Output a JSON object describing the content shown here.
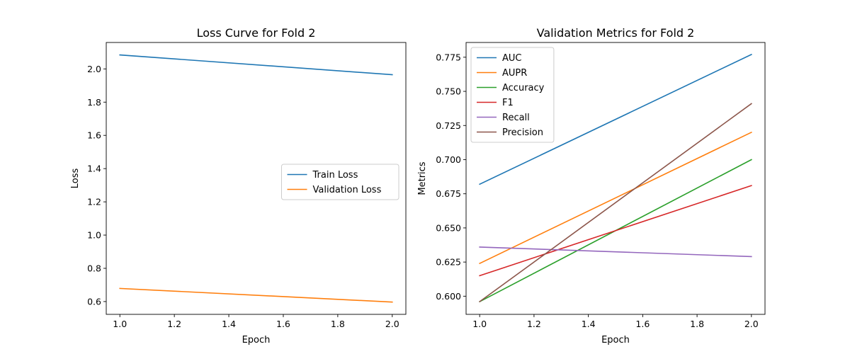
{
  "chart_data": [
    {
      "type": "line",
      "title": "Loss Curve for Fold 2",
      "xlabel": "Epoch",
      "ylabel": "Loss",
      "x": [
        1.0,
        2.0
      ],
      "xlim": [
        0.95,
        2.05
      ],
      "ylim": [
        0.523,
        2.159
      ],
      "xticks": [
        1.0,
        1.2,
        1.4,
        1.6,
        1.8,
        2.0
      ],
      "xtick_labels": [
        "1.0",
        "1.2",
        "1.4",
        "1.6",
        "1.8",
        "2.0"
      ],
      "yticks": [
        0.6,
        0.8,
        1.0,
        1.2,
        1.4,
        1.6,
        1.8,
        2.0
      ],
      "ytick_labels": [
        "0.6",
        "0.8",
        "1.0",
        "1.2",
        "1.4",
        "1.6",
        "1.8",
        "2.0"
      ],
      "grid": false,
      "legend": "center-right",
      "series": [
        {
          "name": "Train Loss",
          "values": [
            2.084,
            1.965
          ],
          "color": "#1f77b4"
        },
        {
          "name": "Validation Loss",
          "values": [
            0.679,
            0.597
          ],
          "color": "#ff7f0e"
        }
      ]
    },
    {
      "type": "line",
      "title": "Validation Metrics for Fold 2",
      "xlabel": "Epoch",
      "ylabel": "Metrics",
      "x": [
        1.0,
        2.0
      ],
      "xlim": [
        0.95,
        2.05
      ],
      "ylim": [
        0.5867,
        0.7858
      ],
      "xticks": [
        1.0,
        1.2,
        1.4,
        1.6,
        1.8,
        2.0
      ],
      "xtick_labels": [
        "1.0",
        "1.2",
        "1.4",
        "1.6",
        "1.8",
        "2.0"
      ],
      "yticks": [
        0.6,
        0.625,
        0.65,
        0.675,
        0.7,
        0.725,
        0.75,
        0.775
      ],
      "ytick_labels": [
        "0.600",
        "0.625",
        "0.650",
        "0.675",
        "0.700",
        "0.725",
        "0.750",
        "0.775"
      ],
      "grid": false,
      "legend": "upper-left",
      "series": [
        {
          "name": "AUC",
          "values": [
            0.682,
            0.777
          ],
          "color": "#1f77b4"
        },
        {
          "name": "AUPR",
          "values": [
            0.624,
            0.72
          ],
          "color": "#ff7f0e"
        },
        {
          "name": "Accuracy",
          "values": [
            0.596,
            0.7
          ],
          "color": "#2ca02c"
        },
        {
          "name": "F1",
          "values": [
            0.615,
            0.681
          ],
          "color": "#d62728"
        },
        {
          "name": "Recall",
          "values": [
            0.636,
            0.629
          ],
          "color": "#9467bd"
        },
        {
          "name": "Precision",
          "values": [
            0.596,
            0.741
          ],
          "color": "#8c564b"
        }
      ]
    }
  ]
}
